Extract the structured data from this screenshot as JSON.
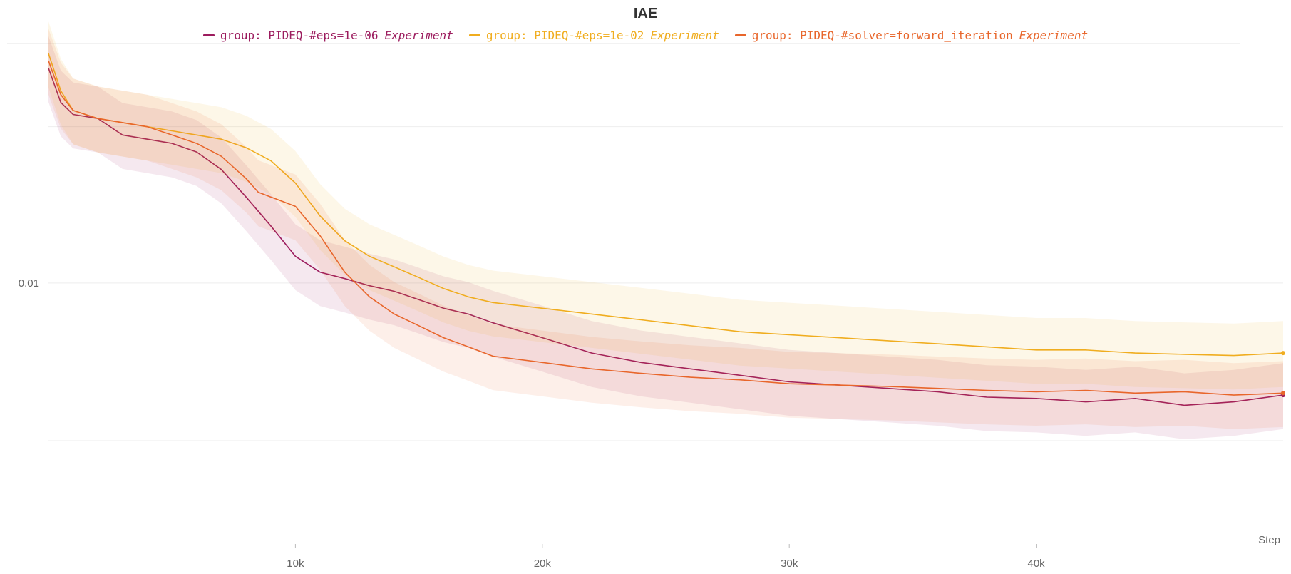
{
  "chart_data": {
    "type": "line",
    "title": "IAE",
    "xlabel": "Step",
    "ylabel": "",
    "y_scale": "log",
    "xlim": [
      0,
      50000
    ],
    "ylim": [
      0.0065,
      0.0155
    ],
    "x_ticks": [
      {
        "value": 10000,
        "label": "10k"
      },
      {
        "value": 20000,
        "label": "20k"
      },
      {
        "value": 30000,
        "label": "30k"
      },
      {
        "value": 40000,
        "label": "40k"
      }
    ],
    "y_ticks": [
      {
        "value": 0.01,
        "label": "0.01"
      }
    ],
    "grid": true,
    "legend_position": "top-center",
    "legend_suffix": "Experiment",
    "series": [
      {
        "name": "group: PIDEQ-#eps=1e-06",
        "color": "#9c1c5e",
        "x": [
          0,
          500,
          1000,
          2000,
          3000,
          4000,
          5000,
          6000,
          7000,
          8000,
          9000,
          10000,
          11000,
          12000,
          13000,
          14000,
          15000,
          16000,
          17000,
          18000,
          20000,
          22000,
          24000,
          26000,
          28000,
          30000,
          32000,
          34000,
          36000,
          38000,
          40000,
          42000,
          44000,
          46000,
          48000,
          50000
        ],
        "values": [
          0.0148,
          0.0139,
          0.0136,
          0.0135,
          0.0131,
          0.013,
          0.0129,
          0.0127,
          0.0123,
          0.0117,
          0.0111,
          0.0105,
          0.0102,
          0.01008,
          0.00995,
          0.00985,
          0.0097,
          0.00955,
          0.00945,
          0.0093,
          0.00905,
          0.0088,
          0.00865,
          0.00855,
          0.00845,
          0.00835,
          0.0083,
          0.00825,
          0.0082,
          0.00812,
          0.0081,
          0.00805,
          0.0081,
          0.008,
          0.00805,
          0.00815
        ]
      },
      {
        "name": "group: PIDEQ-#eps=1e-02",
        "color": "#f0ad1f",
        "x": [
          0,
          500,
          1000,
          2000,
          3000,
          4000,
          5000,
          6000,
          7000,
          8000,
          9000,
          10000,
          11000,
          12000,
          13000,
          14000,
          15000,
          16000,
          17000,
          18000,
          20000,
          22000,
          24000,
          26000,
          28000,
          30000,
          32000,
          34000,
          36000,
          38000,
          40000,
          42000,
          44000,
          46000,
          48000,
          50000
        ],
        "values": [
          0.0152,
          0.0142,
          0.0137,
          0.0135,
          0.0134,
          0.0133,
          0.0132,
          0.0131,
          0.013,
          0.0128,
          0.0125,
          0.012,
          0.0113,
          0.0108,
          0.0105,
          0.0103,
          0.0101,
          0.0099,
          0.00975,
          0.00965,
          0.00955,
          0.00945,
          0.00935,
          0.00925,
          0.00915,
          0.0091,
          0.00905,
          0.009,
          0.00895,
          0.0089,
          0.00885,
          0.00885,
          0.0088,
          0.00878,
          0.00876,
          0.0088
        ]
      },
      {
        "name": "group: PIDEQ-#solver=forward_iteration",
        "color": "#e8662b",
        "x": [
          0,
          500,
          1000,
          2000,
          3000,
          4000,
          5000,
          6000,
          7000,
          8000,
          8500,
          9000,
          10000,
          11000,
          12000,
          13000,
          14000,
          15000,
          16000,
          17000,
          18000,
          20000,
          22000,
          24000,
          26000,
          28000,
          30000,
          32000,
          34000,
          36000,
          38000,
          40000,
          42000,
          44000,
          46000,
          48000,
          50000
        ],
        "values": [
          0.015,
          0.0141,
          0.0137,
          0.0135,
          0.0134,
          0.0133,
          0.0131,
          0.0129,
          0.0126,
          0.0121,
          0.0118,
          0.0117,
          0.0115,
          0.0109,
          0.0102,
          0.00975,
          0.00945,
          0.00925,
          0.00905,
          0.0089,
          0.00875,
          0.00865,
          0.00855,
          0.00848,
          0.00842,
          0.00838,
          0.00832,
          0.0083,
          0.00828,
          0.00825,
          0.00822,
          0.0082,
          0.00822,
          0.00818,
          0.0082,
          0.00815,
          0.00818
        ]
      }
    ]
  }
}
